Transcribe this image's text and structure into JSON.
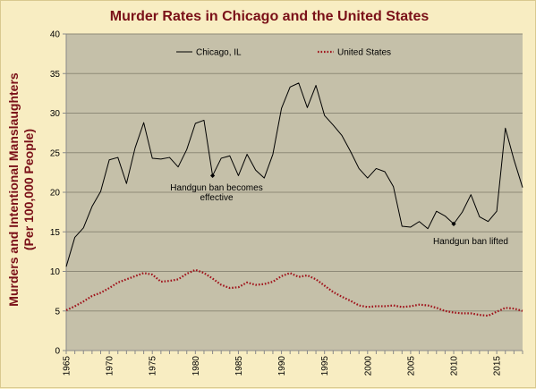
{
  "chart_data": {
    "type": "line",
    "title": "Murder Rates in Chicago and the United States",
    "xlabel": "",
    "ylabel": "Murders and Intentional Manslaughters (Per 100,000 People)",
    "ylabel_lines": [
      "Murders and Intentional Manslaughters",
      "(Per 100,000 People)"
    ],
    "xlim": [
      1965,
      2018
    ],
    "ylim": [
      0,
      40
    ],
    "x_ticks": [
      1965,
      1970,
      1975,
      1980,
      1985,
      1990,
      1995,
      2000,
      2005,
      2010,
      2015
    ],
    "y_ticks": [
      0,
      5,
      10,
      15,
      20,
      25,
      30,
      35,
      40
    ],
    "grid": true,
    "legend_placement": "top",
    "colors": {
      "plot_background": "#c5c0a9",
      "figure_background": "#f8edc2",
      "grid": "#8e8a78",
      "title": "#7a1018",
      "chicago": "#000000",
      "us": "#a0131b"
    },
    "series": [
      {
        "name": "Chicago, IL",
        "style": "solid",
        "x": [
          1965,
          1966,
          1967,
          1968,
          1969,
          1970,
          1971,
          1972,
          1973,
          1974,
          1975,
          1976,
          1977,
          1978,
          1979,
          1980,
          1981,
          1982,
          1983,
          1984,
          1985,
          1986,
          1987,
          1988,
          1989,
          1990,
          1991,
          1992,
          1993,
          1994,
          1995,
          1996,
          1997,
          1998,
          1999,
          2000,
          2001,
          2002,
          2003,
          2004,
          2005,
          2006,
          2007,
          2008,
          2009,
          2010,
          2011,
          2012,
          2013,
          2014,
          2015,
          2016,
          2017,
          2018
        ],
        "y": [
          10.6,
          14.3,
          15.5,
          18.2,
          20.1,
          24.1,
          24.4,
          21.1,
          25.6,
          28.8,
          24.3,
          24.2,
          24.4,
          23.2,
          25.4,
          28.7,
          29.1,
          22.1,
          24.3,
          24.6,
          22.1,
          24.8,
          22.8,
          21.8,
          24.8,
          30.6,
          33.3,
          33.8,
          30.7,
          33.5,
          29.7,
          28.5,
          27.2,
          25.2,
          23.0,
          21.8,
          23.0,
          22.6,
          20.7,
          15.7,
          15.6,
          16.3,
          15.4,
          17.6,
          17.0,
          16.0,
          17.5,
          19.7,
          16.9,
          16.3,
          17.6,
          28.1,
          24.1,
          20.6
        ]
      },
      {
        "name": "United States",
        "style": "dotted",
        "x": [
          1965,
          1966,
          1967,
          1968,
          1969,
          1970,
          1971,
          1972,
          1973,
          1974,
          1975,
          1976,
          1977,
          1978,
          1979,
          1980,
          1981,
          1982,
          1983,
          1984,
          1985,
          1986,
          1987,
          1988,
          1989,
          1990,
          1991,
          1992,
          1993,
          1994,
          1995,
          1996,
          1997,
          1998,
          1999,
          2000,
          2001,
          2002,
          2003,
          2004,
          2005,
          2006,
          2007,
          2008,
          2009,
          2010,
          2011,
          2012,
          2013,
          2014,
          2015,
          2016,
          2017,
          2018
        ],
        "y": [
          5.1,
          5.6,
          6.2,
          6.9,
          7.3,
          7.9,
          8.6,
          9.0,
          9.4,
          9.8,
          9.6,
          8.7,
          8.8,
          9.0,
          9.7,
          10.2,
          9.8,
          9.1,
          8.3,
          7.9,
          8.0,
          8.6,
          8.3,
          8.4,
          8.7,
          9.4,
          9.8,
          9.3,
          9.5,
          9.0,
          8.2,
          7.4,
          6.8,
          6.3,
          5.7,
          5.5,
          5.6,
          5.6,
          5.7,
          5.5,
          5.6,
          5.8,
          5.7,
          5.4,
          5.0,
          4.8,
          4.7,
          4.7,
          4.5,
          4.4,
          4.9,
          5.4,
          5.3,
          5.0
        ]
      }
    ],
    "annotations": [
      {
        "text_lines": [
          "Handgun ban becomes",
          "effective"
        ],
        "x": 1982,
        "y": 22.1
      },
      {
        "text_lines": [
          "Handgun ban lifted"
        ],
        "x": 2010,
        "y": 16.0
      }
    ]
  }
}
